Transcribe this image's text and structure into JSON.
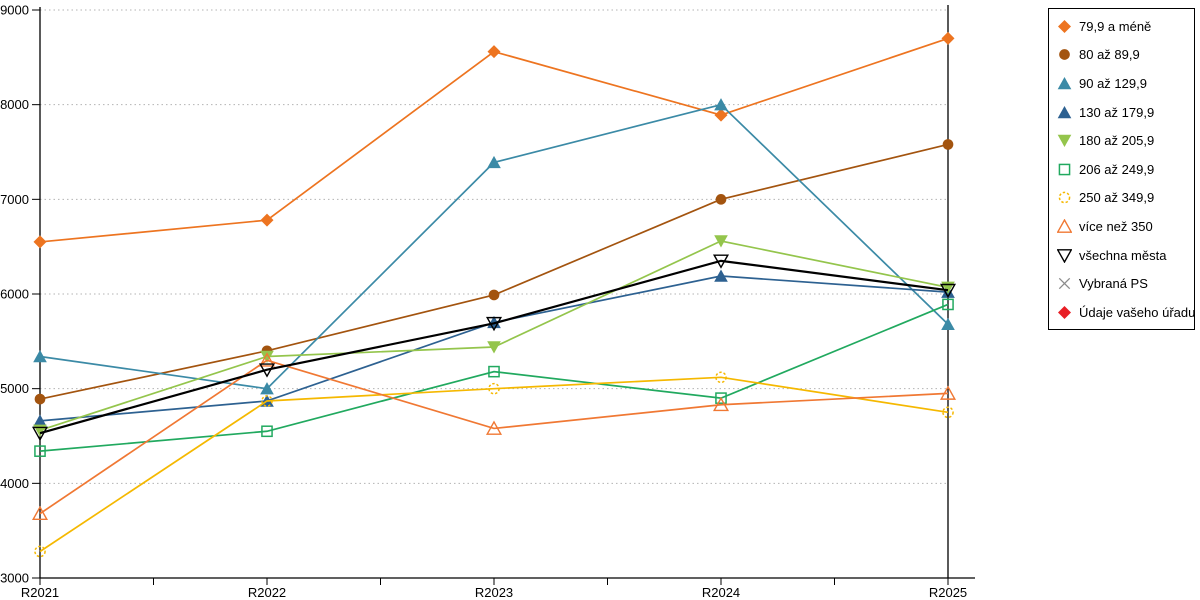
{
  "chart_data": {
    "type": "line",
    "title": "",
    "xlabel": "",
    "ylabel": "",
    "categories": [
      "R2021",
      "R2022",
      "R2023",
      "R2024",
      "R2025"
    ],
    "ylim": [
      3000,
      9000
    ],
    "ytick_labels": [
      "9000",
      "8000",
      "7000",
      "6000",
      "5000",
      "4000",
      "3000"
    ],
    "ytick_values": [
      9000,
      8000,
      7000,
      6000,
      5000,
      4000,
      3000
    ],
    "grid": "horizontal-dotted",
    "grid_color": "#b3b3b3",
    "axis_color": "#000000",
    "legend_position": "right",
    "minor_x_ticks_between_years": true,
    "series": [
      {
        "name": "79,9 a méně",
        "color": "#ED7420",
        "marker": "diamond-filled",
        "line_width": 1.7,
        "values": [
          6550,
          6780,
          8560,
          7890,
          8700
        ]
      },
      {
        "name": "80 až 89,9",
        "color": "#A3540F",
        "marker": "circle-filled",
        "line_width": 1.7,
        "values": [
          4890,
          5400,
          5990,
          7000,
          7580
        ]
      },
      {
        "name": "90 až 129,9",
        "color": "#3B8AA6",
        "marker": "triangle-up-filled",
        "line_width": 1.7,
        "values": [
          5340,
          5000,
          7390,
          8000,
          5680
        ]
      },
      {
        "name": "130 až 179,9",
        "color": "#2D6191",
        "marker": "triangle-up-filled",
        "line_width": 1.7,
        "values": [
          4660,
          4870,
          5700,
          6190,
          6020
        ]
      },
      {
        "name": "180 až 205,9",
        "color": "#94C54C",
        "marker": "triangle-down-filled",
        "line_width": 1.7,
        "values": [
          4560,
          5340,
          5440,
          6560,
          6070
        ]
      },
      {
        "name": "206 až 249,9",
        "color": "#21A95F",
        "marker": "square-open",
        "line_width": 1.7,
        "values": [
          4340,
          4550,
          5180,
          4900,
          5890
        ]
      },
      {
        "name": "250 až 349,9",
        "color": "#F5B800",
        "marker": "circle-open-dashed",
        "line_width": 1.7,
        "values": [
          3280,
          4870,
          5000,
          5120,
          4750
        ]
      },
      {
        "name": "více než 350",
        "color": "#F07833",
        "marker": "triangle-up-open",
        "line_width": 1.7,
        "values": [
          3680,
          5300,
          4580,
          4830,
          4950
        ]
      },
      {
        "name": "všechna města",
        "color": "#000000",
        "marker": "triangle-down-open",
        "line_width": 2.2,
        "values": [
          4530,
          5200,
          5690,
          6350,
          6040
        ]
      },
      {
        "name": "Vybraná PS",
        "color": "#8C8C8C",
        "marker": "x",
        "line_width": 1.5,
        "values": []
      },
      {
        "name": "Údaje vašeho úřadu",
        "color": "#E81E25",
        "marker": "diamond-filled",
        "line_width": 1.5,
        "values": []
      }
    ]
  },
  "legend": {
    "items": [
      {
        "label": "79,9 a méně"
      },
      {
        "label": "80 až 89,9"
      },
      {
        "label": "90 až 129,9"
      },
      {
        "label": "130 až 179,9"
      },
      {
        "label": "180 až 205,9"
      },
      {
        "label": "206 až 249,9"
      },
      {
        "label": "250 až 349,9"
      },
      {
        "label": "více než 350"
      },
      {
        "label": "všechna města"
      },
      {
        "label": "Vybraná PS"
      },
      {
        "label": "Údaje vašeho úřadu"
      }
    ]
  }
}
